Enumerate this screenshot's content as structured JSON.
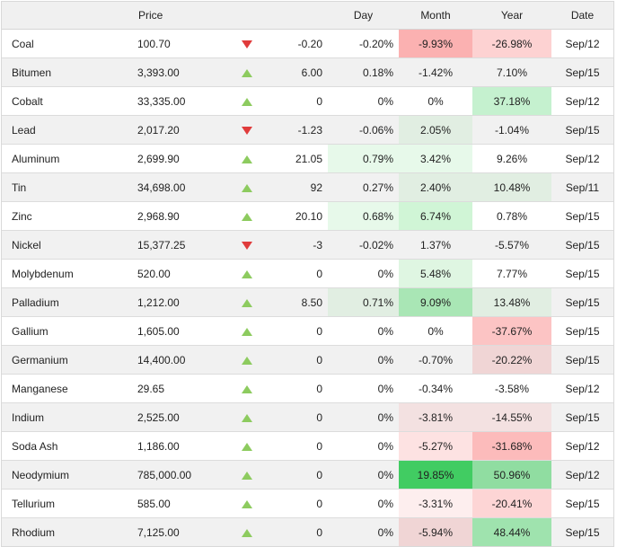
{
  "headers": {
    "name": "",
    "price": "Price",
    "arrow": "",
    "change": "",
    "day": "Day",
    "month": "Month",
    "year": "Year",
    "date": "Date"
  },
  "colors": {
    "up_arrow": "#8dcb5f",
    "down_arrow": "#e03b3b",
    "positive_strong": "#41cc62",
    "negative_strong": "#fdb0b0"
  },
  "rows": [
    {
      "name": "Coal",
      "price": "100.70",
      "direction": "down",
      "change": "-0.20",
      "day": "-0.20%",
      "month": "-9.93%",
      "year": "-26.98%",
      "date": "Sep/12",
      "day_bg": "",
      "month_bg": "#fbb1b1",
      "year_bg": "#fdd2d2"
    },
    {
      "name": "Bitumen",
      "price": "3,393.00",
      "direction": "up",
      "change": "6.00",
      "day": "0.18%",
      "month": "-1.42%",
      "year": "7.10%",
      "date": "Sep/15",
      "day_bg": "",
      "month_bg": "",
      "year_bg": ""
    },
    {
      "name": "Cobalt",
      "price": "33,335.00",
      "direction": "up",
      "change": "0",
      "day": "0%",
      "month": "0%",
      "year": "37.18%",
      "date": "Sep/12",
      "day_bg": "",
      "month_bg": "",
      "year_bg": "#c5f1cf"
    },
    {
      "name": "Lead",
      "price": "2,017.20",
      "direction": "down",
      "change": "-1.23",
      "day": "-0.06%",
      "month": "2.05%",
      "year": "-1.04%",
      "date": "Sep/15",
      "day_bg": "",
      "month_bg": "#e1eee2",
      "year_bg": ""
    },
    {
      "name": "Aluminum",
      "price": "2,699.90",
      "direction": "up",
      "change": "21.05",
      "day": "0.79%",
      "month": "3.42%",
      "year": "9.26%",
      "date": "Sep/12",
      "day_bg": "#e7f9ea",
      "month_bg": "#e7f9ea",
      "year_bg": ""
    },
    {
      "name": "Tin",
      "price": "34,698.00",
      "direction": "up",
      "change": "92",
      "day": "0.27%",
      "month": "2.40%",
      "year": "10.48%",
      "date": "Sep/11",
      "day_bg": "",
      "month_bg": "#e1eee2",
      "year_bg": "#e1eee2"
    },
    {
      "name": "Zinc",
      "price": "2,968.90",
      "direction": "up",
      "change": "20.10",
      "day": "0.68%",
      "month": "6.74%",
      "year": "0.78%",
      "date": "Sep/15",
      "day_bg": "#e7f9ea",
      "month_bg": "#d0f5d6",
      "year_bg": ""
    },
    {
      "name": "Nickel",
      "price": "15,377.25",
      "direction": "down",
      "change": "-3",
      "day": "-0.02%",
      "month": "1.37%",
      "year": "-5.57%",
      "date": "Sep/15",
      "day_bg": "",
      "month_bg": "",
      "year_bg": ""
    },
    {
      "name": "Molybdenum",
      "price": "520.00",
      "direction": "up",
      "change": "0",
      "day": "0%",
      "month": "5.48%",
      "year": "7.77%",
      "date": "Sep/15",
      "day_bg": "",
      "month_bg": "#dff6e2",
      "year_bg": ""
    },
    {
      "name": "Palladium",
      "price": "1,212.00",
      "direction": "up",
      "change": "8.50",
      "day": "0.71%",
      "month": "9.09%",
      "year": "13.48%",
      "date": "Sep/15",
      "day_bg": "#e1eee2",
      "month_bg": "#a9e6b5",
      "year_bg": "#e1eee2"
    },
    {
      "name": "Gallium",
      "price": "1,605.00",
      "direction": "up",
      "change": "0",
      "day": "0%",
      "month": "0%",
      "year": "-37.67%",
      "date": "Sep/15",
      "day_bg": "",
      "month_bg": "",
      "year_bg": "#fcc4c4"
    },
    {
      "name": "Germanium",
      "price": "14,400.00",
      "direction": "up",
      "change": "0",
      "day": "0%",
      "month": "-0.70%",
      "year": "-20.22%",
      "date": "Sep/15",
      "day_bg": "",
      "month_bg": "",
      "year_bg": "#f0d5d5"
    },
    {
      "name": "Manganese",
      "price": "29.65",
      "direction": "up",
      "change": "0",
      "day": "0%",
      "month": "-0.34%",
      "year": "-3.58%",
      "date": "Sep/12",
      "day_bg": "",
      "month_bg": "",
      "year_bg": ""
    },
    {
      "name": "Indium",
      "price": "2,525.00",
      "direction": "up",
      "change": "0",
      "day": "0%",
      "month": "-3.81%",
      "year": "-14.55%",
      "date": "Sep/15",
      "day_bg": "",
      "month_bg": "#f3e1e1",
      "year_bg": "#f3e1e1"
    },
    {
      "name": "Soda Ash",
      "price": "1,186.00",
      "direction": "up",
      "change": "0",
      "day": "0%",
      "month": "-5.27%",
      "year": "-31.68%",
      "date": "Sep/12",
      "day_bg": "",
      "month_bg": "#fde2e2",
      "year_bg": "#fcbbbb"
    },
    {
      "name": "Neodymium",
      "price": "785,000.00",
      "direction": "up",
      "change": "0",
      "day": "0%",
      "month": "19.85%",
      "year": "50.96%",
      "date": "Sep/12",
      "day_bg": "",
      "month_bg": "#41cc62",
      "year_bg": "#90dda1"
    },
    {
      "name": "Tellurium",
      "price": "585.00",
      "direction": "up",
      "change": "0",
      "day": "0%",
      "month": "-3.31%",
      "year": "-20.41%",
      "date": "Sep/15",
      "day_bg": "",
      "month_bg": "#fdeeee",
      "year_bg": "#fdd5d5"
    },
    {
      "name": "Rhodium",
      "price": "7,125.00",
      "direction": "up",
      "change": "0",
      "day": "0%",
      "month": "-5.94%",
      "year": "48.44%",
      "date": "Sep/15",
      "day_bg": "",
      "month_bg": "#f0d5d5",
      "year_bg": "#9fe3ae"
    }
  ]
}
